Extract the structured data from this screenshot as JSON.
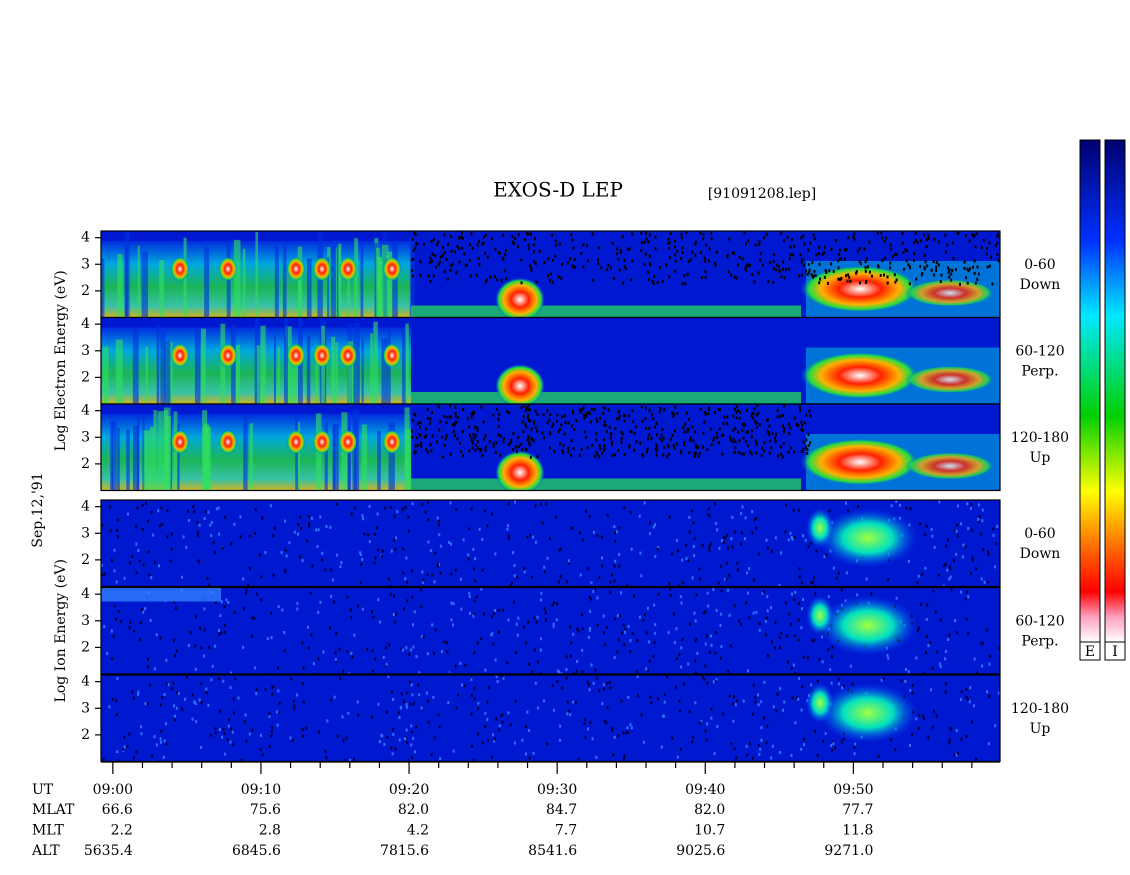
{
  "chart_data": {
    "type": "spectrogram",
    "title": "EXOS-D LEP",
    "subtitle": "[91091208.lep]",
    "date_label": "Sep.12,'91",
    "xlim": [
      -0.8,
      59.9
    ],
    "xticks": [
      {
        "value": 0,
        "label": "09:00"
      },
      {
        "value": 10,
        "label": "09:10"
      },
      {
        "value": 20,
        "label": "09:20"
      },
      {
        "value": 30,
        "label": "09:30"
      },
      {
        "value": 40,
        "label": "09:40"
      },
      {
        "value": 50,
        "label": "09:50"
      }
    ],
    "xminorticks": [
      2,
      4,
      6,
      8,
      12,
      14,
      16,
      18,
      22,
      24,
      26,
      28,
      32,
      34,
      36,
      38,
      42,
      44,
      46,
      48,
      52,
      54,
      56,
      58
    ],
    "ylim": [
      1,
      4.25
    ],
    "yticks": [
      2,
      3,
      4
    ],
    "groups": [
      {
        "label": "Log Electron Energy (eV)",
        "colorbar": "E",
        "panels": [
          {
            "label": "0-60",
            "sublabel": "Down"
          },
          {
            "label": "60-120",
            "sublabel": "Perp."
          },
          {
            "label": "120-180",
            "sublabel": "Up"
          }
        ]
      },
      {
        "label": "Log Ion Energy (eV)",
        "colorbar": "I",
        "panels": [
          {
            "label": "0-60",
            "sublabel": "Down"
          },
          {
            "label": "60-120",
            "sublabel": "Perp."
          },
          {
            "label": "120-180",
            "sublabel": "Up"
          }
        ]
      }
    ],
    "orbit": {
      "time_label": "UT",
      "rows": [
        {
          "label": "MLAT",
          "values": [
            "66.6",
            "75.6",
            "82.0",
            "84.7",
            "82.0",
            "77.7"
          ]
        },
        {
          "label": "MLT",
          "values": [
            "2.2",
            "2.8",
            "4.2",
            "7.7",
            "10.7",
            "11.8"
          ]
        },
        {
          "label": "ALT",
          "values": [
            "5635.4",
            "6845.6",
            "7815.6",
            "8541.6",
            "9025.6",
            "9271.0"
          ]
        }
      ]
    }
  }
}
